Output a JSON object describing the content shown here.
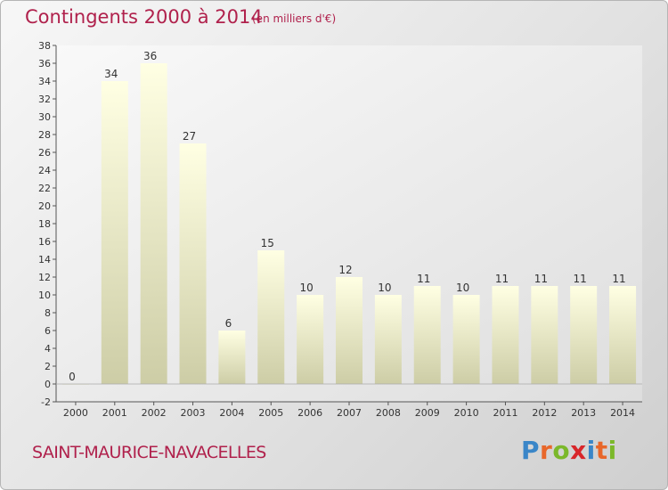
{
  "header": {
    "title": "Contingents 2000 à 2014",
    "subtitle": "(en milliers d'€)"
  },
  "footer": {
    "commune": "SAINT-MAURICE-NAVACELLES",
    "logo": [
      "P",
      "r",
      "o",
      "x",
      "i",
      "t",
      "i"
    ]
  },
  "colors": {
    "title": "#b0214c",
    "bar_top": "#ffffe0",
    "bar_bottom": "#cdcda6",
    "logo": [
      "#3a86c8",
      "#e8672a",
      "#7bb82a",
      "#d8262a",
      "#3a86c8",
      "#e8672a",
      "#7bb82a"
    ]
  },
  "chart_data": {
    "type": "bar",
    "title": "Contingents 2000 à 2014",
    "subtitle": "(en milliers d'€)",
    "categories": [
      "2000",
      "2001",
      "2002",
      "2003",
      "2004",
      "2005",
      "2006",
      "2007",
      "2008",
      "2009",
      "2010",
      "2011",
      "2012",
      "2013",
      "2014"
    ],
    "values": [
      0,
      34,
      36,
      27,
      6,
      15,
      10,
      12,
      10,
      11,
      10,
      11,
      11,
      11,
      11
    ],
    "data_labels": [
      "0",
      "34",
      "36",
      "27",
      "6",
      "15",
      "10",
      "12",
      "10",
      "11",
      "10",
      "11",
      "11",
      "11",
      "11"
    ],
    "ylim": [
      -2,
      38
    ],
    "yticks": [
      -2,
      0,
      2,
      4,
      6,
      8,
      10,
      12,
      14,
      16,
      18,
      20,
      22,
      24,
      26,
      28,
      30,
      32,
      34,
      36,
      38
    ],
    "grid": false,
    "legend": "none"
  }
}
